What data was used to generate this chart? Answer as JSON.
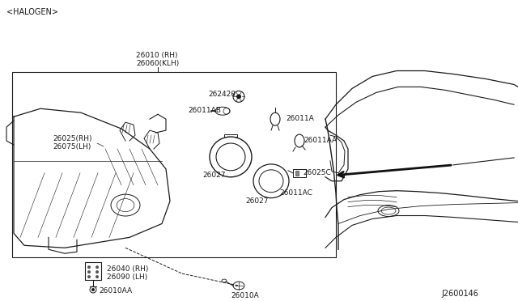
{
  "bg_color": "#ffffff",
  "line_color": "#1a1a1a",
  "text_color": "#1a1a1a",
  "fig_width": 6.4,
  "fig_height": 3.72,
  "dpi": 100,
  "labels": {
    "halogen": "<HALOGEN>",
    "part1a": "26010 (RH)",
    "part1b": "26060(KLH)",
    "part2": "262420",
    "part3": "26011AB",
    "part4": "26011A",
    "part5": "26011AA",
    "part6a": "26025(RH)",
    "part6b": "26075(LH)",
    "part7a": "26027",
    "part7b": "26027",
    "part8": "26025C",
    "part9": "26011AC",
    "part10a": "26040 (RH)",
    "part10b": "26090 (LH)",
    "part11": "26010AA",
    "part12": "26010A",
    "diagram_num": "J2600146"
  }
}
